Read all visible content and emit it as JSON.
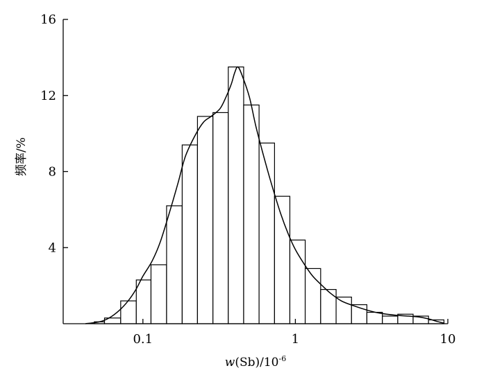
{
  "chart_data": {
    "type": "bar",
    "title": "",
    "xlabel": "w(Sb)/10-6",
    "xlabel_parts": {
      "var": "w",
      "rest": "(Sb)/10",
      "sup": "-6"
    },
    "ylabel": "频率/%",
    "x_scale": "log",
    "xlim": [
      0.03,
      10
    ],
    "ylim": [
      0,
      16
    ],
    "x_ticks": [
      {
        "value": 0.1,
        "label": "0.1"
      },
      {
        "value": 1,
        "label": "1"
      },
      {
        "value": 10,
        "label": "10"
      }
    ],
    "y_ticks": [
      {
        "value": 4,
        "label": "4"
      },
      {
        "value": 8,
        "label": "8"
      },
      {
        "value": 12,
        "label": "12"
      },
      {
        "value": 16,
        "label": "16"
      }
    ],
    "grid": false,
    "legend": "none",
    "bin_edges": [
      0.048,
      0.056,
      0.0715,
      0.0905,
      0.113,
      0.143,
      0.181,
      0.228,
      0.288,
      0.363,
      0.458,
      0.578,
      0.73,
      0.92,
      1.16,
      1.465,
      1.85,
      2.335,
      2.945,
      3.72,
      4.695,
      5.92,
      7.47,
      9.43
    ],
    "frequencies": [
      0.1,
      0.3,
      1.2,
      2.3,
      3.1,
      6.2,
      9.4,
      10.9,
      11.1,
      13.5,
      11.5,
      9.5,
      6.7,
      4.4,
      2.9,
      1.8,
      1.4,
      1.0,
      0.6,
      0.4,
      0.5,
      0.4,
      0.2
    ],
    "curve": {
      "x": [
        0.042,
        0.052,
        0.06,
        0.07,
        0.08,
        0.09,
        0.1,
        0.115,
        0.13,
        0.15,
        0.17,
        0.19,
        0.22,
        0.25,
        0.28,
        0.32,
        0.35,
        0.38,
        0.4,
        0.42,
        0.45,
        0.5,
        0.55,
        0.62,
        0.7,
        0.8,
        0.9,
        1.0,
        1.15,
        1.3,
        1.5,
        1.7,
        2.0,
        2.4,
        3.0,
        3.6,
        4.5,
        5.5,
        6.5,
        7.5,
        8.5,
        9.5
      ],
      "y": [
        0.0,
        0.1,
        0.3,
        0.7,
        1.2,
        1.8,
        2.5,
        3.3,
        4.3,
        5.9,
        7.4,
        8.8,
        9.9,
        10.6,
        10.9,
        11.3,
        11.9,
        12.6,
        13.2,
        13.5,
        13.0,
        11.9,
        10.4,
        8.8,
        7.3,
        5.8,
        4.7,
        3.9,
        3.1,
        2.5,
        2.0,
        1.6,
        1.2,
        0.95,
        0.7,
        0.55,
        0.45,
        0.4,
        0.35,
        0.25,
        0.12,
        0.02
      ]
    }
  }
}
